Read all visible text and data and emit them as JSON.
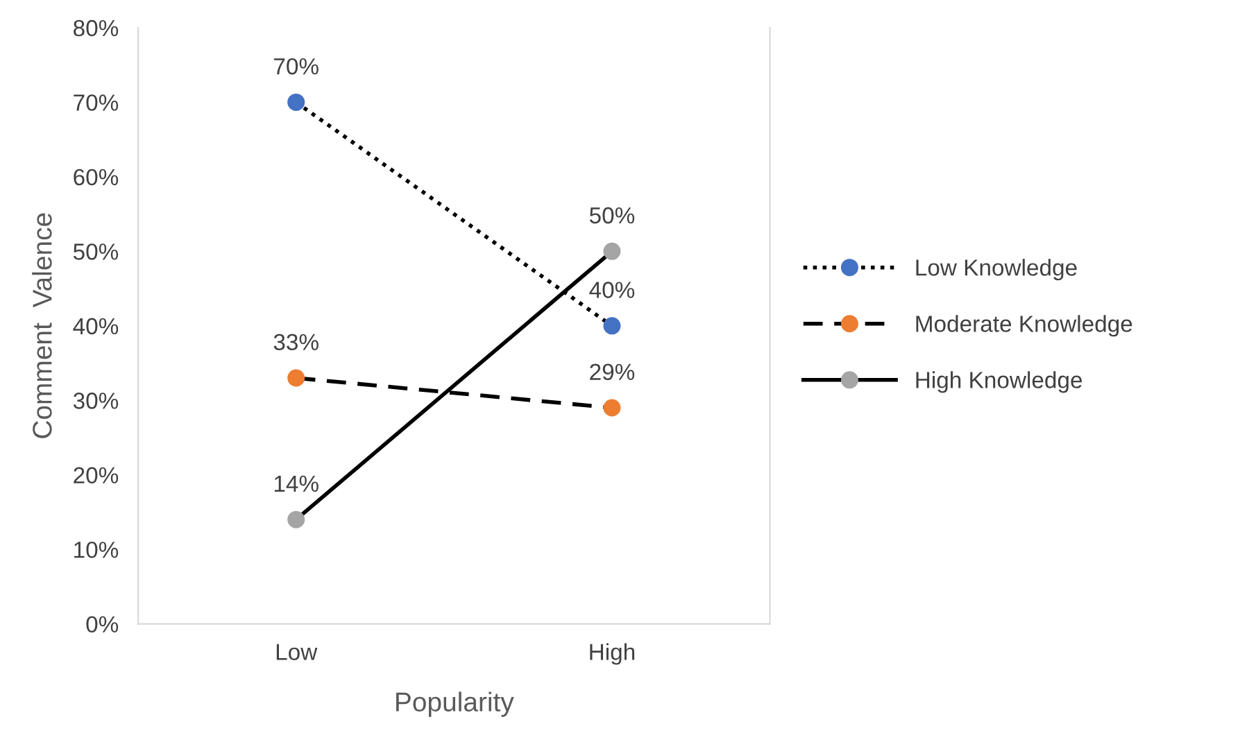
{
  "chart_data": {
    "type": "line",
    "xlabel": "Popularity",
    "ylabel": "Comment  Valence",
    "categories": [
      "Low",
      "High"
    ],
    "series": [
      {
        "name": "Low Knowledge",
        "color": "#4472c4",
        "values": [
          70,
          40
        ],
        "value_labels": [
          "70%",
          "40%"
        ],
        "line_style": "dotted"
      },
      {
        "name": "Moderate Knowledge",
        "color": "#ed7d31",
        "values": [
          33,
          29
        ],
        "value_labels": [
          "33%",
          "29%"
        ],
        "line_style": "dashed"
      },
      {
        "name": "High Knowledge",
        "color": "#a5a5a5",
        "values": [
          14,
          50
        ],
        "value_labels": [
          "14%",
          "50%"
        ],
        "line_style": "solid"
      }
    ],
    "ylim": [
      0,
      80
    ],
    "yticks": [
      {
        "value": 0,
        "label": "0%"
      },
      {
        "value": 10,
        "label": "10%"
      },
      {
        "value": 20,
        "label": "20%"
      },
      {
        "value": 30,
        "label": "30%"
      },
      {
        "value": 40,
        "label": "40%"
      },
      {
        "value": 50,
        "label": "50%"
      },
      {
        "value": 60,
        "label": "60%"
      },
      {
        "value": 70,
        "label": "70%"
      },
      {
        "value": 80,
        "label": "80%"
      }
    ],
    "marker": "circle",
    "grid": false,
    "legend": "right"
  }
}
